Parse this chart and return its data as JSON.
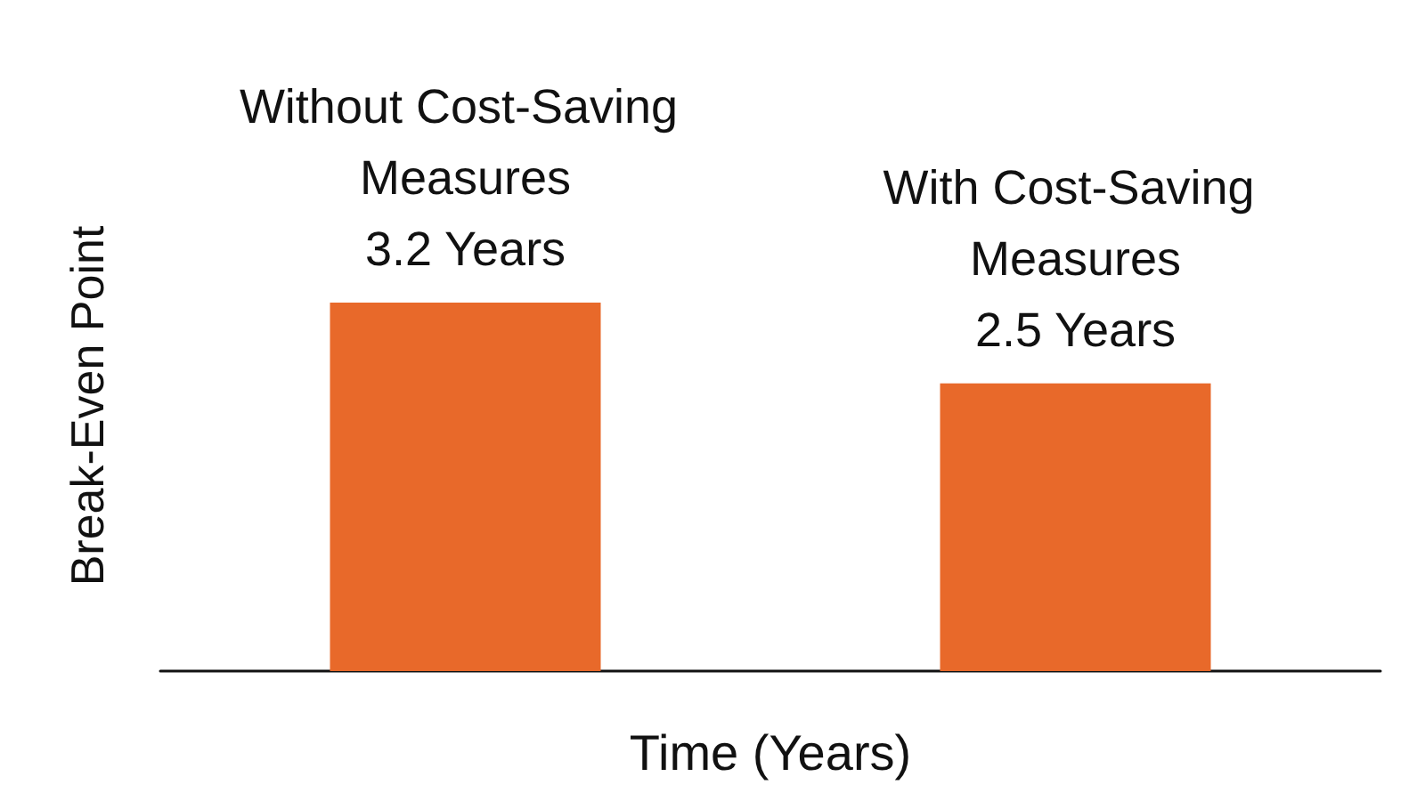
{
  "chart_data": {
    "type": "bar",
    "xlabel": "Time (Years)",
    "ylabel": "Break-Even Point",
    "categories": [
      null,
      null
    ],
    "values": [
      3.2,
      2.5
    ],
    "value_labels": [
      "Without Cost-Saving Measures\n3.2 Years",
      "With Cost-Saving Measures\n2.5 Years"
    ],
    "color": "#e8692a",
    "tick_labels": false,
    "grid": false
  }
}
